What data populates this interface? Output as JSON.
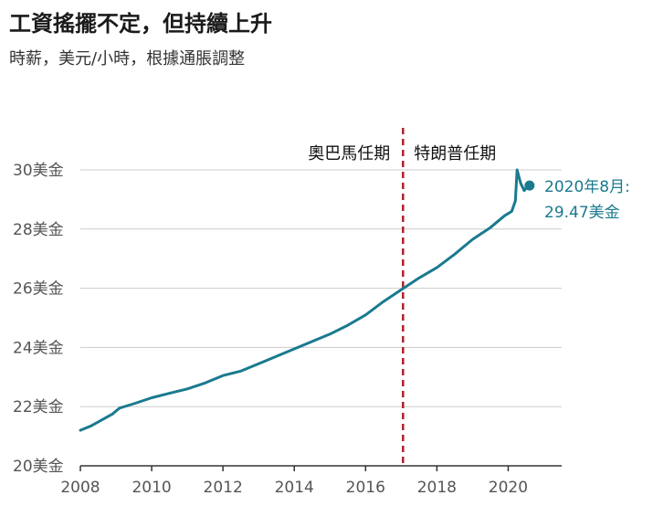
{
  "title": "工資搖擺不定，但持續上升",
  "subtitle": "時薪，美元/小時，根據通脹調整",
  "colors": {
    "line": "#1a7a8f",
    "divider": "#b0202a",
    "grid": "#cccccc",
    "axis": "#333333"
  },
  "chart_data": {
    "type": "line",
    "title": "工資搖擺不定，但持續上升",
    "subtitle": "時薪，美元/小時，根據通脹調整",
    "xlim": [
      2008,
      2021.5
    ],
    "ylim": [
      20,
      30
    ],
    "x_ticks": [
      "2008",
      "2010",
      "2012",
      "2014",
      "2016",
      "2018",
      "2020"
    ],
    "y_ticks": [
      "20美金",
      "22美金",
      "24美金",
      "26美金",
      "28美金",
      "30美金"
    ],
    "grid": true,
    "series": [
      {
        "values": [
          [
            2008.0,
            21.2
          ],
          [
            2008.3,
            21.35
          ],
          [
            2008.6,
            21.55
          ],
          [
            2008.9,
            21.75
          ],
          [
            2009.1,
            21.95
          ],
          [
            2009.5,
            22.1
          ],
          [
            2010.0,
            22.3
          ],
          [
            2010.5,
            22.45
          ],
          [
            2011.0,
            22.6
          ],
          [
            2011.5,
            22.8
          ],
          [
            2012.0,
            23.05
          ],
          [
            2012.5,
            23.2
          ],
          [
            2013.0,
            23.45
          ],
          [
            2013.5,
            23.7
          ],
          [
            2014.0,
            23.95
          ],
          [
            2014.5,
            24.2
          ],
          [
            2015.0,
            24.45
          ],
          [
            2015.5,
            24.75
          ],
          [
            2016.0,
            25.1
          ],
          [
            2016.5,
            25.55
          ],
          [
            2017.0,
            25.95
          ],
          [
            2017.5,
            26.35
          ],
          [
            2018.0,
            26.7
          ],
          [
            2018.5,
            27.15
          ],
          [
            2019.0,
            27.65
          ],
          [
            2019.5,
            28.05
          ],
          [
            2019.9,
            28.45
          ],
          [
            2020.1,
            28.6
          ],
          [
            2020.2,
            28.95
          ],
          [
            2020.25,
            30.0
          ],
          [
            2020.35,
            29.55
          ],
          [
            2020.45,
            29.3
          ],
          [
            2020.55,
            29.47
          ],
          [
            2020.6,
            29.47
          ]
        ]
      }
    ],
    "divider_x": 2017.05,
    "era_labels": {
      "left": "奧巴馬任期",
      "right": "特朗普任期"
    },
    "annotation": {
      "x": 2020.6,
      "y": 29.47,
      "line1": "2020年8月:",
      "line2": "29.47美金"
    }
  }
}
